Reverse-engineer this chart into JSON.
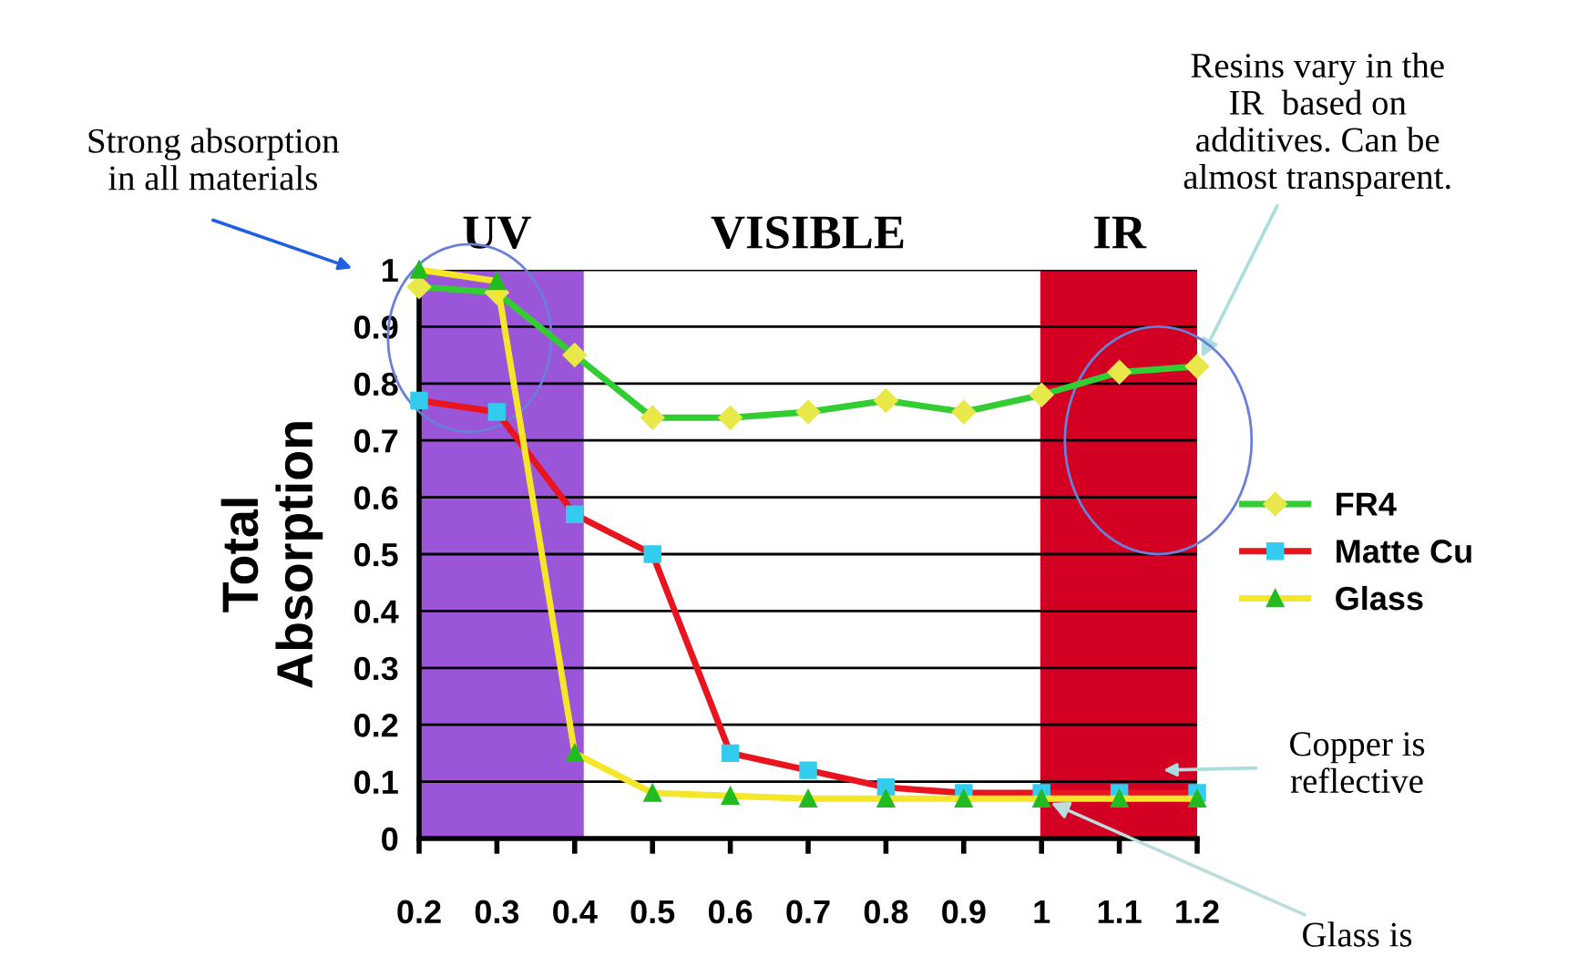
{
  "chart_data": {
    "type": "line",
    "ylabel": "Total\nAbsorption",
    "categories": [
      "0.2",
      "0.3",
      "0.4",
      "0.5",
      "0.6",
      "0.7",
      "0.8",
      "0.9",
      "1",
      "1.1",
      "1.2"
    ],
    "series": [
      {
        "name": "FR4",
        "color": "#33cc33",
        "marker": "diamond",
        "values": [
          0.97,
          0.96,
          0.85,
          0.74,
          0.74,
          0.75,
          0.77,
          0.75,
          0.78,
          0.82,
          0.83
        ]
      },
      {
        "name": "Matte Cu",
        "color": "#e8141e",
        "marker": "square",
        "values": [
          0.77,
          0.75,
          0.57,
          0.5,
          0.15,
          0.12,
          0.09,
          0.08,
          0.08,
          0.08,
          0.08
        ]
      },
      {
        "name": "Glass",
        "color": "#f5e62a",
        "marker": "triangle",
        "values": [
          1.0,
          0.98,
          0.15,
          0.08,
          0.075,
          0.07,
          0.07,
          0.07,
          0.07,
          0.07,
          0.07
        ]
      }
    ],
    "ylim": [
      0,
      1
    ],
    "yticks": [
      0,
      0.1,
      0.2,
      0.3,
      0.4,
      0.5,
      0.6,
      0.7,
      0.8,
      0.9,
      1
    ],
    "grid": "y",
    "legend": "right",
    "line_style": "solid",
    "bands": [
      {
        "axis": "x",
        "from": "0.2",
        "to": "0.4",
        "label": "UV",
        "color": "#9a55d8"
      },
      {
        "axis": "x",
        "from": "1",
        "to": "1.2",
        "label": "IR",
        "color": "#d40024"
      }
    ],
    "annotations": [
      "VISIBLE",
      "Strong absorption\nin all materials",
      {
        "text": "Resins vary in the\nIR  based on\nadditives. Can be\nalmost transparent.",
        "x": "1.2",
        "y": 0.83
      },
      "Copper is\nreflective",
      {
        "text": "Glass is",
        "x": "1",
        "y": 0.07
      }
    ]
  }
}
